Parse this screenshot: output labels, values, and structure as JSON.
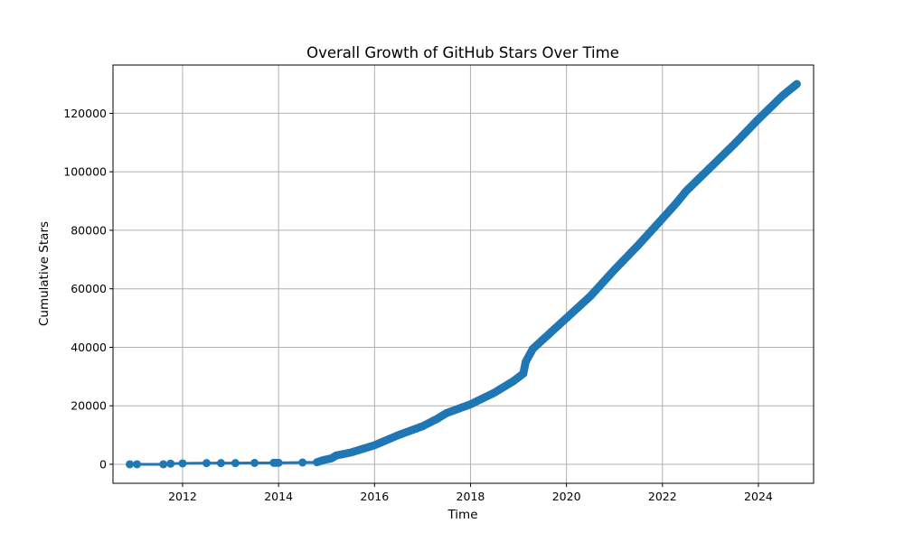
{
  "chart_data": {
    "type": "scatter",
    "title": "Overall Growth of GitHub Stars Over Time",
    "xlabel": "Time",
    "ylabel": "Cumulative Stars",
    "xlim": [
      2010.55,
      2025.15
    ],
    "ylim": [
      -6500,
      136500
    ],
    "xticks": [
      2012,
      2014,
      2016,
      2018,
      2020,
      2022,
      2024
    ],
    "xtick_labels": [
      "2012",
      "2014",
      "2016",
      "2018",
      "2020",
      "2022",
      "2024"
    ],
    "yticks": [
      0,
      20000,
      40000,
      60000,
      80000,
      100000,
      120000
    ],
    "ytick_labels": [
      "0",
      "20000",
      "40000",
      "60000",
      "80000",
      "100000",
      "120000"
    ],
    "grid": true,
    "colors": {
      "series": "#1f77b4",
      "grid": "#b0b0b0",
      "axis": "#000000"
    },
    "series": [
      {
        "points": [
          [
            2010.9,
            0
          ],
          [
            2011.05,
            0
          ],
          [
            2011.6,
            0
          ],
          [
            2011.75,
            200
          ],
          [
            2012.0,
            300
          ],
          [
            2012.5,
            400
          ],
          [
            2012.8,
            400
          ],
          [
            2013.1,
            400
          ],
          [
            2013.5,
            450
          ],
          [
            2013.9,
            500
          ],
          [
            2014.0,
            500
          ],
          [
            2014.5,
            600
          ],
          [
            2014.8,
            700
          ],
          [
            2014.95,
            1500
          ],
          [
            2015.1,
            2000
          ],
          [
            2015.2,
            3000
          ],
          [
            2015.5,
            4000
          ],
          [
            2016.0,
            6500
          ],
          [
            2016.5,
            10000
          ],
          [
            2017.0,
            13000
          ],
          [
            2017.3,
            15500
          ],
          [
            2017.5,
            17500
          ],
          [
            2018.0,
            20500
          ],
          [
            2018.5,
            24500
          ],
          [
            2018.9,
            28500
          ],
          [
            2019.1,
            31000
          ],
          [
            2019.15,
            35000
          ],
          [
            2019.3,
            39500
          ],
          [
            2019.5,
            42500
          ],
          [
            2020.0,
            50000
          ],
          [
            2020.5,
            57500
          ],
          [
            2021.0,
            66500
          ],
          [
            2021.5,
            75000
          ],
          [
            2022.0,
            84000
          ],
          [
            2022.3,
            89500
          ],
          [
            2022.5,
            93500
          ],
          [
            2023.0,
            101500
          ],
          [
            2023.5,
            109500
          ],
          [
            2024.0,
            118000
          ],
          [
            2024.5,
            126000
          ],
          [
            2024.8,
            130000
          ]
        ]
      }
    ]
  }
}
